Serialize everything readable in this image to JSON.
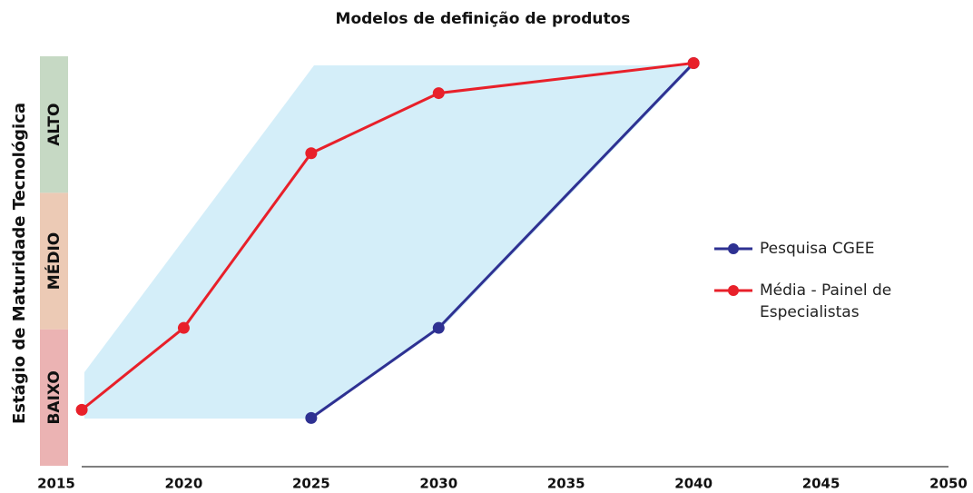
{
  "chart_data": {
    "type": "line",
    "title": "Modelos de definição de produtos",
    "y_label": "Estágio de Maturidade Tecnológica",
    "bands": [
      {
        "label": "BAIXO",
        "color": "#ebb3b3"
      },
      {
        "label": "MÉDIO",
        "color": "#eccab5"
      },
      {
        "label": "ALTO",
        "color": "#c6d9c4"
      }
    ],
    "xlim": [
      2015,
      2050
    ],
    "xticks": [
      2015,
      2020,
      2025,
      2030,
      2035,
      2040,
      2045,
      2050
    ],
    "ylim": [
      0,
      3
    ],
    "series": [
      {
        "name": "Pesquisa CGEE",
        "color": "#2e3192",
        "x": [
          2025,
          2030,
          2040
        ],
        "values": [
          0.35,
          1.01,
          2.95
        ]
      },
      {
        "name": "Média - Painel de Especialistas",
        "color": "#e8202a",
        "x": [
          2016,
          2020,
          2025,
          2030,
          2040
        ],
        "values": [
          0.41,
          1.01,
          2.29,
          2.73,
          2.95
        ]
      }
    ]
  }
}
